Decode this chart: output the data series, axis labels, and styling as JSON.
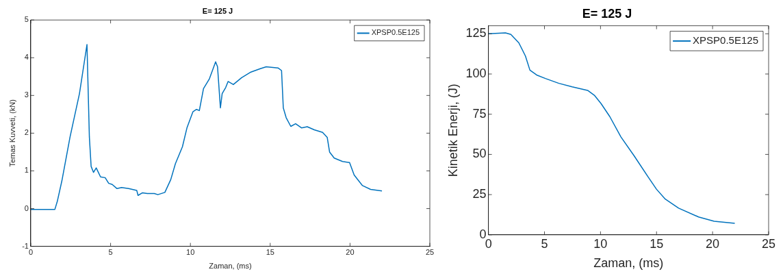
{
  "chart_data": [
    {
      "type": "line",
      "title": "E= 125 J",
      "xlabel": "Zaman, (ms)",
      "ylabel": "Temas Kuvveti, (kN)",
      "xlim": [
        0,
        25
      ],
      "ylim": [
        -1,
        5
      ],
      "xticks": [
        0,
        5,
        10,
        15,
        20,
        25
      ],
      "yticks": [
        -1,
        0,
        1,
        2,
        3,
        4,
        5
      ],
      "legend": "top right",
      "series": [
        {
          "name": "XPSP0.5E125",
          "color": "#0072bd",
          "x": [
            0,
            1.51,
            1.66,
            1.95,
            2.46,
            3.05,
            3.52,
            3.67,
            3.78,
            3.93,
            4.1,
            4.37,
            4.66,
            4.88,
            5.1,
            5.4,
            5.69,
            6.13,
            6.64,
            6.72,
            7.0,
            7.3,
            7.74,
            7.96,
            8.4,
            8.77,
            9.06,
            9.5,
            9.79,
            10.16,
            10.38,
            10.56,
            10.82,
            11.19,
            11.58,
            11.7,
            11.88,
            11.99,
            12.21,
            12.36,
            12.69,
            13.21,
            13.79,
            14.38,
            14.75,
            15.49,
            15.71,
            15.82,
            16.0,
            16.29,
            16.59,
            16.96,
            17.32,
            17.76,
            18.28,
            18.57,
            18.72,
            19.01,
            19.53,
            19.97,
            20.26,
            20.78,
            21.29,
            22.0
          ],
          "values": [
            -0.02,
            -0.02,
            0.19,
            0.74,
            1.9,
            3.05,
            4.35,
            1.9,
            1.12,
            0.96,
            1.08,
            0.84,
            0.82,
            0.67,
            0.64,
            0.53,
            0.56,
            0.53,
            0.48,
            0.35,
            0.42,
            0.4,
            0.4,
            0.37,
            0.43,
            0.77,
            1.19,
            1.64,
            2.15,
            2.57,
            2.63,
            2.6,
            3.18,
            3.44,
            3.89,
            3.76,
            2.67,
            3.05,
            3.21,
            3.37,
            3.29,
            3.47,
            3.62,
            3.71,
            3.76,
            3.73,
            3.66,
            2.67,
            2.41,
            2.18,
            2.25,
            2.14,
            2.17,
            2.09,
            2.02,
            1.89,
            1.5,
            1.34,
            1.25,
            1.22,
            0.89,
            0.61,
            0.51,
            0.47
          ]
        }
      ]
    },
    {
      "type": "line",
      "title": "E= 125 J",
      "xlabel": "Zaman, (ms)",
      "ylabel": "Kinetik Enerji, (J)",
      "xlim": [
        0,
        25
      ],
      "ylim": [
        0,
        130
      ],
      "xticks": [
        0,
        5,
        10,
        15,
        20,
        25
      ],
      "yticks": [
        0,
        25,
        50,
        75,
        100,
        125
      ],
      "legend": "top right",
      "series": [
        {
          "name": "XPSP0.5E125",
          "color": "#0072bd",
          "x": [
            0,
            1.52,
            2.0,
            2.71,
            3.3,
            3.7,
            4.3,
            5.09,
            6.28,
            7.47,
            8.85,
            9.45,
            10.04,
            10.83,
            11.82,
            13.0,
            14.2,
            14.99,
            15.78,
            16.97,
            18.75,
            20.14,
            21.98
          ],
          "values": [
            125,
            125.6,
            124.6,
            119.4,
            111.2,
            102.4,
            99.4,
            97.2,
            94.2,
            92,
            89.8,
            86.8,
            81.7,
            73.5,
            60.9,
            49.1,
            36.5,
            28.4,
            22.2,
            16.6,
            11.1,
            8.4,
            7.2
          ]
        }
      ]
    }
  ]
}
